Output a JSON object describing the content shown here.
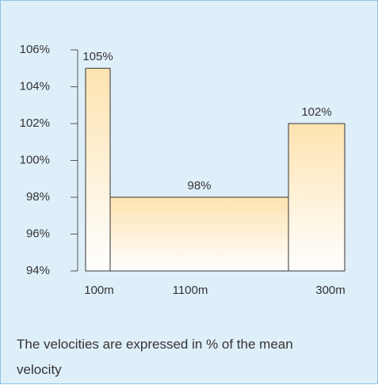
{
  "chart_data": {
    "type": "bar",
    "categories": [
      "100m",
      "1100m",
      "300m"
    ],
    "values": [
      105,
      98,
      102
    ],
    "value_labels": [
      "105%",
      "98%",
      "102%"
    ],
    "color": "#fde3b0",
    "ylim": [
      94,
      106
    ],
    "yticks": [
      {
        "value": 94,
        "label": "94%"
      },
      {
        "value": 96,
        "label": "96%"
      },
      {
        "value": 98,
        "label": "98%"
      },
      {
        "value": 100,
        "label": "100%"
      },
      {
        "value": 102,
        "label": "102%"
      },
      {
        "value": 104,
        "label": "104%"
      },
      {
        "value": 106,
        "label": "106%"
      }
    ],
    "note": "The velocities are expressed in % of the mean velocity"
  }
}
